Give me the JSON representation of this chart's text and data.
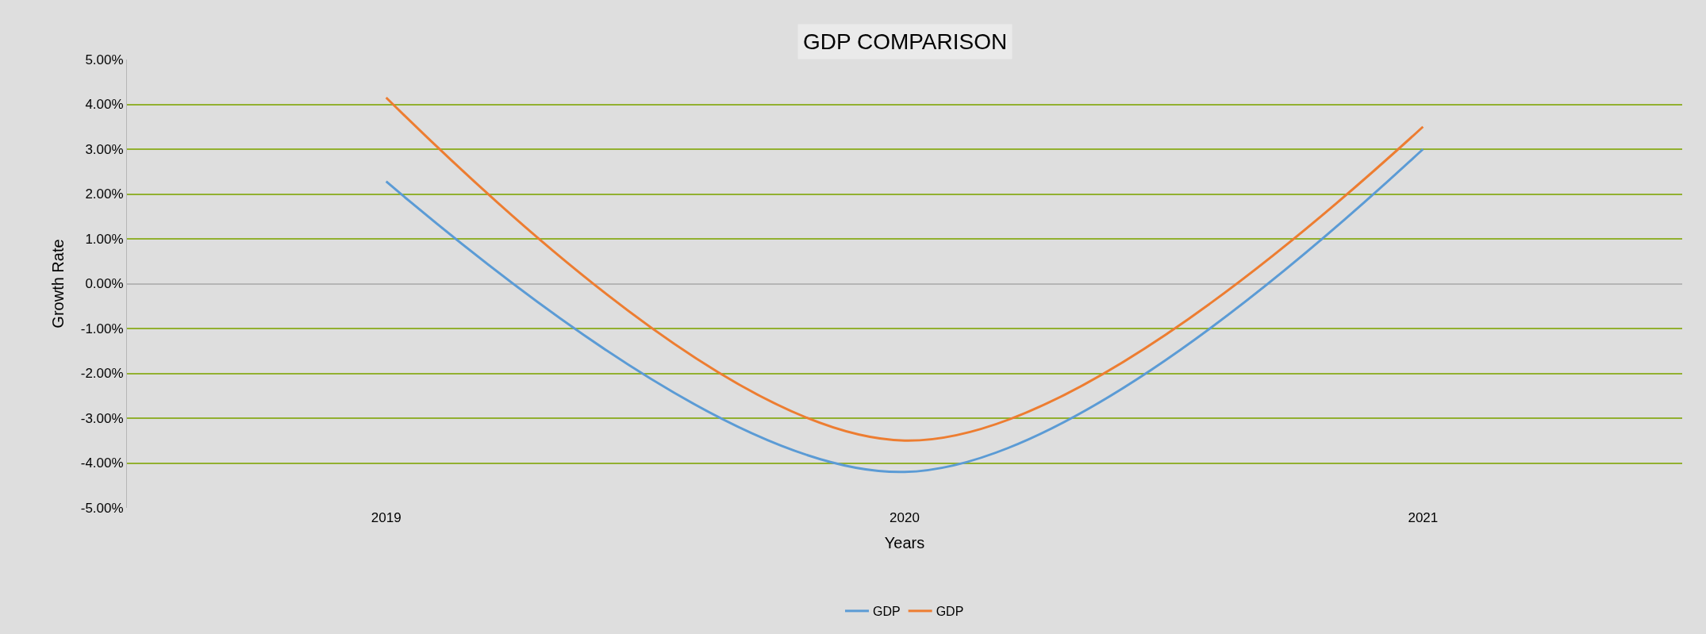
{
  "chart_data": {
    "type": "line",
    "title": "GDP COMPARISON",
    "xlabel": "Years",
    "ylabel": "Growth Rate",
    "categories": [
      "2019",
      "2020",
      "2021"
    ],
    "series": [
      {
        "name": "GDP",
        "color": "#5b9bd5",
        "values": [
          2.28,
          -4.2,
          3.0
        ]
      },
      {
        "name": "GDP",
        "color": "#ed7d31",
        "values": [
          4.15,
          -3.5,
          3.5
        ]
      }
    ],
    "ylim": [
      -5,
      5
    ],
    "yticks": [
      {
        "value": -5,
        "label": "-5.00%"
      },
      {
        "value": -4,
        "label": "-4.00%"
      },
      {
        "value": -3,
        "label": "-3.00%"
      },
      {
        "value": -2,
        "label": "-2.00%"
      },
      {
        "value": -1,
        "label": "-1.00%"
      },
      {
        "value": 0,
        "label": "0.00%"
      },
      {
        "value": 1,
        "label": "1.00%"
      },
      {
        "value": 2,
        "label": "2.00%"
      },
      {
        "value": 3,
        "label": "3.00%"
      },
      {
        "value": 4,
        "label": "4.00%"
      },
      {
        "value": 5,
        "label": "5.00%"
      }
    ],
    "grid": "y",
    "legend": "bottom",
    "marker": "none",
    "line_style": "solid"
  }
}
